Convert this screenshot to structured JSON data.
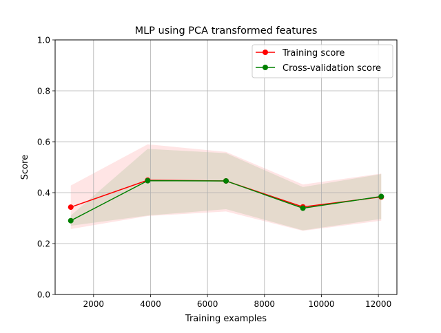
{
  "chart_data": {
    "type": "line",
    "title": "MLP using PCA transformed features",
    "xlabel": "Training examples",
    "ylabel": "Score",
    "xlim": [
      650,
      12650
    ],
    "ylim": [
      0.0,
      1.0
    ],
    "xticks": [
      2000,
      4000,
      6000,
      8000,
      10000,
      12000
    ],
    "xtick_labels": [
      "2000",
      "4000",
      "6000",
      "8000",
      "10000",
      "12000"
    ],
    "yticks": [
      0.0,
      0.2,
      0.4,
      0.6,
      0.8,
      1.0
    ],
    "ytick_labels": [
      "0.0",
      "0.2",
      "0.4",
      "0.6",
      "0.8",
      "1.0"
    ],
    "grid": true,
    "legend_position": "upper right",
    "x": [
      1200,
      3900,
      6650,
      9350,
      12100
    ],
    "series": [
      {
        "name": "Training score",
        "color": "#ff0000",
        "values": [
          0.343,
          0.449,
          0.446,
          0.344,
          0.383
        ],
        "band_lower": [
          0.257,
          0.308,
          0.326,
          0.25,
          0.29
        ],
        "band_upper": [
          0.428,
          0.59,
          0.56,
          0.432,
          0.475
        ]
      },
      {
        "name": "Cross-validation score",
        "color": "#008000",
        "values": [
          0.29,
          0.447,
          0.446,
          0.339,
          0.385
        ],
        "band_lower": [
          0.27,
          0.31,
          0.335,
          0.252,
          0.297
        ],
        "band_upper": [
          0.31,
          0.572,
          0.555,
          0.422,
          0.473
        ]
      }
    ]
  }
}
